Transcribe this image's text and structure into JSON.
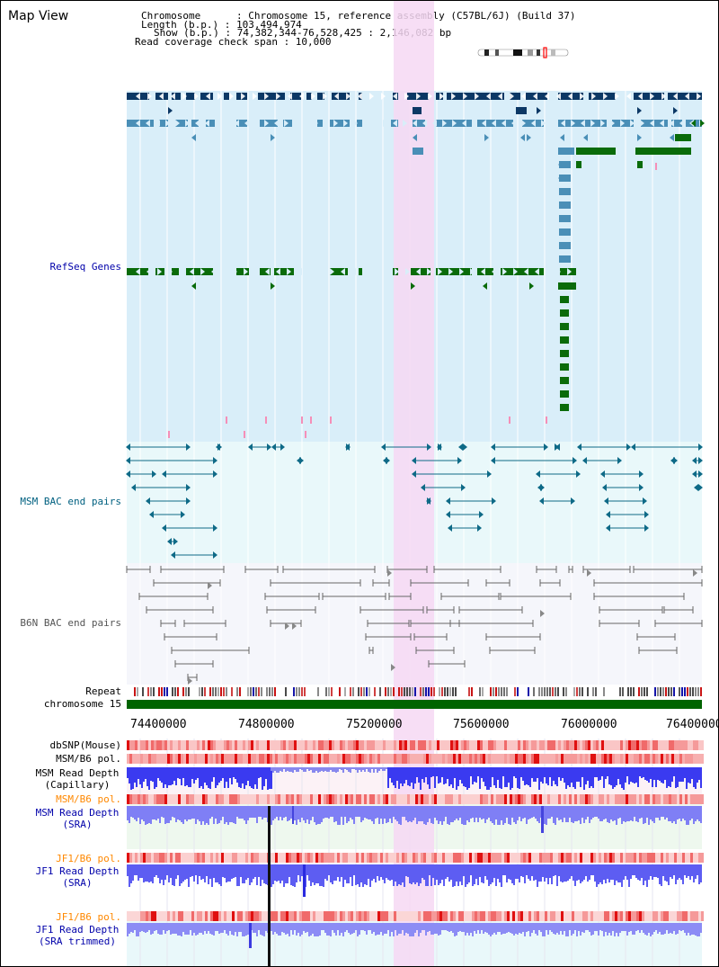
{
  "map_title": "Map View",
  "info": {
    "lines": [
      "Chromosome      : Chromosome 15, reference assembly (C57BL/6J) (Build 37)",
      "Length (b.p.) : 103,494,974",
      "Show (b.p.) : 74,382,344-76,528,425 : 2,146,082 bp",
      "Read coverage check span : 10,000"
    ]
  },
  "tracks": {
    "refseq": "RefSeq Genes",
    "msm_bac": "MSM BAC end pairs",
    "b6n_bac": "B6N BAC end pairs",
    "repeat": "Repeat",
    "chromosome": "chromosome 15",
    "dbsnp": "dbSNP(Mouse)",
    "msm_pol_1": "MSM/B6 pol.",
    "msm_depth_cap_1": "MSM Read Depth",
    "msm_depth_cap_2": "(Capillary)",
    "msm_pol_2": "MSM/B6 pol.",
    "msm_depth_sra_1": "MSM Read Depth",
    "msm_depth_sra_2": "(SRA)",
    "jf1_pol_1": "JF1/B6 pol.",
    "jf1_depth_sra_1": "JF1 Read Depth",
    "jf1_depth_sra_2": "(SRA)",
    "jf1_pol_2": "JF1/B6 pol.",
    "jf1_depth_trim_1": "JF1 Read Depth",
    "jf1_depth_trim_2": "(SRA trimmed)"
  },
  "axis": {
    "ticks": [
      "74400000",
      "74800000",
      "75200000",
      "75600000",
      "76000000",
      "76400000"
    ]
  },
  "colors": {
    "refseq_bg": "#d9eef9",
    "msm_bg": "#e9f8fa",
    "b6n_bg": "#f5f6fb",
    "highlight": "#f6d8f3",
    "navy": "#0c3865",
    "steel": "#4a8fb7",
    "green": "#0a6b0a",
    "teal": "#0e6a87",
    "gray": "#666666",
    "orange_label": "#ff8800",
    "blue_label": "#0000aa",
    "teal_label": "#006080"
  }
}
